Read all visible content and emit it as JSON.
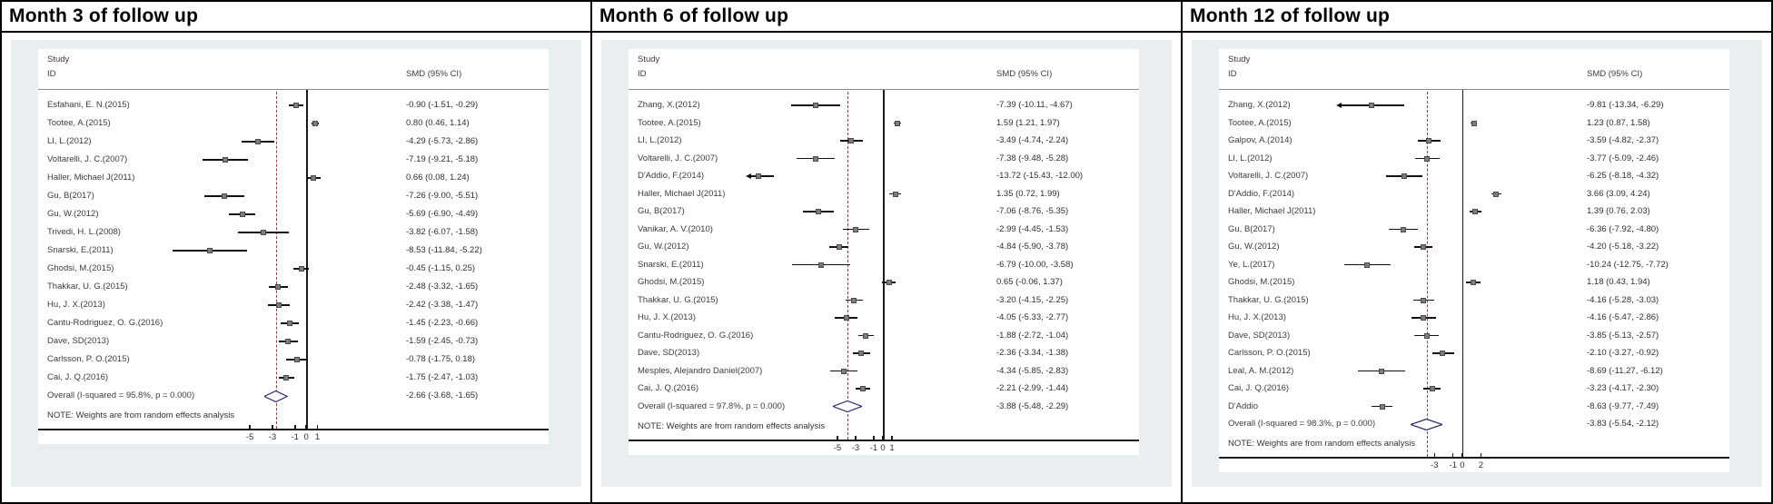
{
  "colors": {
    "panel_bg": "#e9eef1",
    "dashed_overall_line": "#8e3f3f",
    "diamond_stroke": "#29296b",
    "marker_fill": "#7d7d7d",
    "axis_line": "#1a1a1a"
  },
  "chart_data": [
    {
      "type": "scatter",
      "subtype": "forest_plot",
      "title": "Month 3 of follow up",
      "columns": {
        "study": "Study",
        "id": "ID",
        "smd": "SMD (95% CI)"
      },
      "note": "NOTE: Weights are from random effects analysis",
      "x_ticks": [
        -5,
        -3,
        -1,
        0,
        1
      ],
      "x_domain": [
        -12.5,
        2.0
      ],
      "zero_line": 0,
      "legend": "none",
      "studies": [
        {
          "label": "Esfahani, E. N.(2015)",
          "est": -0.9,
          "lo": -1.51,
          "hi": -0.29,
          "ci": "-0.90 (-1.51, -0.29)"
        },
        {
          "label": "Tootee, A.(2015)",
          "est": 0.8,
          "lo": 0.46,
          "hi": 1.14,
          "ci": "0.80 (0.46, 1.14)"
        },
        {
          "label": "LI, L.(2012)",
          "est": -4.29,
          "lo": -5.73,
          "hi": -2.86,
          "ci": "-4.29 (-5.73, -2.86)"
        },
        {
          "label": "Voltarelli, J. C.(2007)",
          "est": -7.19,
          "lo": -9.21,
          "hi": -5.18,
          "ci": "-7.19 (-9.21, -5.18)"
        },
        {
          "label": "Haller, Michael J(2011)",
          "est": 0.66,
          "lo": 0.08,
          "hi": 1.24,
          "ci": "0.66 (0.08, 1.24)"
        },
        {
          "label": "Gu, B(2017)",
          "est": -7.26,
          "lo": -9.0,
          "hi": -5.51,
          "ci": "-7.26 (-9.00, -5.51)"
        },
        {
          "label": "Gu, W.(2012)",
          "est": -5.69,
          "lo": -6.9,
          "hi": -4.49,
          "ci": "-5.69 (-6.90, -4.49)"
        },
        {
          "label": "Trivedi, H. L.(2008)",
          "est": -3.82,
          "lo": -6.07,
          "hi": -1.58,
          "ci": "-3.82 (-6.07, -1.58)"
        },
        {
          "label": "Snarski, E.(2011)",
          "est": -8.53,
          "lo": -11.84,
          "hi": -5.22,
          "ci": "-8.53 (-11.84, -5.22)"
        },
        {
          "label": "Ghodsi, M.(2015)",
          "est": -0.45,
          "lo": -1.15,
          "hi": 0.25,
          "ci": "-0.45 (-1.15, 0.25)"
        },
        {
          "label": "Thakkar, U. G.(2015)",
          "est": -2.48,
          "lo": -3.32,
          "hi": -1.65,
          "ci": "-2.48 (-3.32, -1.65)"
        },
        {
          "label": "Hu, J. X.(2013)",
          "est": -2.42,
          "lo": -3.38,
          "hi": -1.47,
          "ci": "-2.42 (-3.38, -1.47)"
        },
        {
          "label": "Cantu-Rodriguez, O. G.(2016)",
          "est": -1.45,
          "lo": -2.23,
          "hi": -0.66,
          "ci": "-1.45 (-2.23, -0.66)"
        },
        {
          "label": "Dave, SD(2013)",
          "est": -1.59,
          "lo": -2.45,
          "hi": -0.73,
          "ci": "-1.59 (-2.45, -0.73)"
        },
        {
          "label": "Carlsson, P. O.(2015)",
          "est": -0.78,
          "lo": -1.75,
          "hi": 0.18,
          "ci": "-0.78 (-1.75, 0.18)"
        },
        {
          "label": "Cai, J. Q.(2016)",
          "est": -1.75,
          "lo": -2.47,
          "hi": -1.03,
          "ci": "-1.75 (-2.47, -1.03)"
        }
      ],
      "overall": {
        "label": "Overall  (I-squared = 95.8%, p = 0.000)",
        "est": -2.66,
        "lo": -3.68,
        "hi": -1.65,
        "ci": "-2.66 (-3.68, -1.65)"
      }
    },
    {
      "type": "scatter",
      "subtype": "forest_plot",
      "title": "Month 6 of follow up",
      "columns": {
        "study": "Study",
        "id": "ID",
        "smd": "SMD (95% CI)"
      },
      "note": "NOTE: Weights are from random effects analysis",
      "x_ticks": [
        -5,
        -3,
        -1,
        0,
        1
      ],
      "x_domain": [
        -14.5,
        2.0
      ],
      "zero_line": 0,
      "legend": "none",
      "studies": [
        {
          "label": "Zhang, X.(2012)",
          "est": -7.39,
          "lo": -10.11,
          "hi": -4.67,
          "ci": "-7.39 (-10.11, -4.67)"
        },
        {
          "label": "Tootee, A.(2015)",
          "est": 1.59,
          "lo": 1.21,
          "hi": 1.97,
          "ci": "1.59 (1.21, 1.97)"
        },
        {
          "label": "LI, L.(2012)",
          "est": -3.49,
          "lo": -4.74,
          "hi": -2.24,
          "ci": "-3.49 (-4.74, -2.24)"
        },
        {
          "label": "Voltarelli, J. C.(2007)",
          "est": -7.38,
          "lo": -9.48,
          "hi": -5.28,
          "ci": "-7.38 (-9.48, -5.28)"
        },
        {
          "label": "D'Addio, F.(2014)",
          "est": -13.72,
          "lo": -15.43,
          "hi": -12.0,
          "ci": "-13.72 (-15.43, -12.00)"
        },
        {
          "label": "Haller, Michael J(2011)",
          "est": 1.35,
          "lo": 0.72,
          "hi": 1.99,
          "ci": "1.35 (0.72, 1.99)"
        },
        {
          "label": "Gu, B(2017)",
          "est": -7.06,
          "lo": -8.76,
          "hi": -5.35,
          "ci": "-7.06 (-8.76, -5.35)"
        },
        {
          "label": "Vanikar, A. V.(2010)",
          "est": -2.99,
          "lo": -4.45,
          "hi": -1.53,
          "ci": "-2.99 (-4.45, -1.53)"
        },
        {
          "label": "Gu, W.(2012)",
          "est": -4.84,
          "lo": -5.9,
          "hi": -3.78,
          "ci": "-4.84 (-5.90, -3.78)"
        },
        {
          "label": "Snarski, E.(2011)",
          "est": -6.79,
          "lo": -10.0,
          "hi": -3.58,
          "ci": "-6.79 (-10.00, -3.58)"
        },
        {
          "label": "Ghodsi, M.(2015)",
          "est": 0.65,
          "lo": -0.06,
          "hi": 1.37,
          "ci": "0.65 (-0.06, 1.37)"
        },
        {
          "label": "Thakkar, U. G.(2015)",
          "est": -3.2,
          "lo": -4.15,
          "hi": -2.25,
          "ci": "-3.20 (-4.15, -2.25)"
        },
        {
          "label": "Hu, J. X.(2013)",
          "est": -4.05,
          "lo": -5.33,
          "hi": -2.77,
          "ci": "-4.05 (-5.33, -2.77)"
        },
        {
          "label": "Cantu-Rodriguez, O. G.(2016)",
          "est": -1.88,
          "lo": -2.72,
          "hi": -1.04,
          "ci": "-1.88 (-2.72, -1.04)"
        },
        {
          "label": "Dave, SD(2013)",
          "est": -2.36,
          "lo": -3.34,
          "hi": -1.38,
          "ci": "-2.36 (-3.34, -1.38)"
        },
        {
          "label": "Mesples, Alejandro Daniel(2007)",
          "est": -4.34,
          "lo": -5.85,
          "hi": -2.83,
          "ci": "-4.34 (-5.85, -2.83)"
        },
        {
          "label": "Cai, J. Q.(2016)",
          "est": -2.21,
          "lo": -2.99,
          "hi": -1.44,
          "ci": "-2.21 (-2.99, -1.44)"
        }
      ],
      "overall": {
        "label": "Overall  (I-squared = 97.8%, p = 0.000)",
        "est": -3.88,
        "lo": -5.48,
        "hi": -2.29,
        "ci": "-3.88 (-5.48, -2.29)"
      }
    },
    {
      "type": "scatter",
      "subtype": "forest_plot",
      "title": "Month 12 of follow up",
      "columns": {
        "study": "Study",
        "id": "ID",
        "smd": "SMD (95% CI)"
      },
      "note": "NOTE: Weights are from random effects analysis",
      "x_ticks": [
        -3,
        -1,
        0,
        2
      ],
      "x_domain": [
        -13.0,
        4.6
      ],
      "zero_line": 0,
      "legend": "none",
      "studies": [
        {
          "label": "Zhang, X.(2012)",
          "est": -9.81,
          "lo": -13.34,
          "hi": -6.29,
          "ci": "-9.81 (-13.34, -6.29)"
        },
        {
          "label": "Tootee, A.(2015)",
          "est": 1.23,
          "lo": 0.87,
          "hi": 1.58,
          "ci": "1.23 (0.87, 1.58)"
        },
        {
          "label": "Galpov, A.(2014)",
          "est": -3.59,
          "lo": -4.82,
          "hi": -2.37,
          "ci": "-3.59 (-4.82, -2.37)"
        },
        {
          "label": "LI, L.(2012)",
          "est": -3.77,
          "lo": -5.09,
          "hi": -2.46,
          "ci": "-3.77 (-5.09, -2.46)"
        },
        {
          "label": "Voltarelli, J. C.(2007)",
          "est": -6.25,
          "lo": -8.18,
          "hi": -4.32,
          "ci": "-6.25 (-8.18, -4.32)"
        },
        {
          "label": "D'Addio, F.(2014)",
          "est": 3.66,
          "lo": 3.09,
          "hi": 4.24,
          "ci": "3.66 (3.09, 4.24)"
        },
        {
          "label": "Haller, Michael J(2011)",
          "est": 1.39,
          "lo": 0.76,
          "hi": 2.03,
          "ci": "1.39 (0.76, 2.03)"
        },
        {
          "label": "Gu, B(2017)",
          "est": -6.36,
          "lo": -7.92,
          "hi": -4.8,
          "ci": "-6.36 (-7.92, -4.80)"
        },
        {
          "label": "Gu, W.(2012)",
          "est": -4.2,
          "lo": -5.18,
          "hi": -3.22,
          "ci": "-4.20 (-5.18, -3.22)"
        },
        {
          "label": "Ye, L.(2017)",
          "est": -10.24,
          "lo": -12.75,
          "hi": -7.72,
          "ci": "-10.24 (-12.75, -7.72)"
        },
        {
          "label": "Ghodsi, M.(2015)",
          "est": 1.18,
          "lo": 0.43,
          "hi": 1.94,
          "ci": "1.18 (0.43, 1.94)"
        },
        {
          "label": "Thakkar, U. G.(2015)",
          "est": -4.16,
          "lo": -5.28,
          "hi": -3.03,
          "ci": "-4.16 (-5.28, -3.03)"
        },
        {
          "label": "Hu, J. X.(2013)",
          "est": -4.16,
          "lo": -5.47,
          "hi": -2.86,
          "ci": "-4.16 (-5.47, -2.86)"
        },
        {
          "label": "Dave, SD(2013)",
          "est": -3.85,
          "lo": -5.13,
          "hi": -2.57,
          "ci": "-3.85 (-5.13, -2.57)"
        },
        {
          "label": "Carlsson, P. O.(2015)",
          "est": -2.1,
          "lo": -3.27,
          "hi": -0.92,
          "ci": "-2.10 (-3.27, -0.92)"
        },
        {
          "label": "Leal, A. M.(2012)",
          "est": -8.69,
          "lo": -11.27,
          "hi": -6.12,
          "ci": "-8.69 (-11.27, -6.12)"
        },
        {
          "label": "Cai, J. Q.(2016)",
          "est": -3.23,
          "lo": -4.17,
          "hi": -2.3,
          "ci": "-3.23 (-4.17, -2.30)"
        },
        {
          "label": "D'Addio",
          "est": -8.63,
          "lo": -9.77,
          "hi": -7.49,
          "ci": "-8.63 (-9.77, -7.49)"
        }
      ],
      "overall": {
        "label": "Overall  (I-squared = 98.3%, p = 0.000)",
        "est": -3.83,
        "lo": -5.54,
        "hi": -2.12,
        "ci": "-3.83 (-5.54, -2.12)"
      }
    }
  ]
}
